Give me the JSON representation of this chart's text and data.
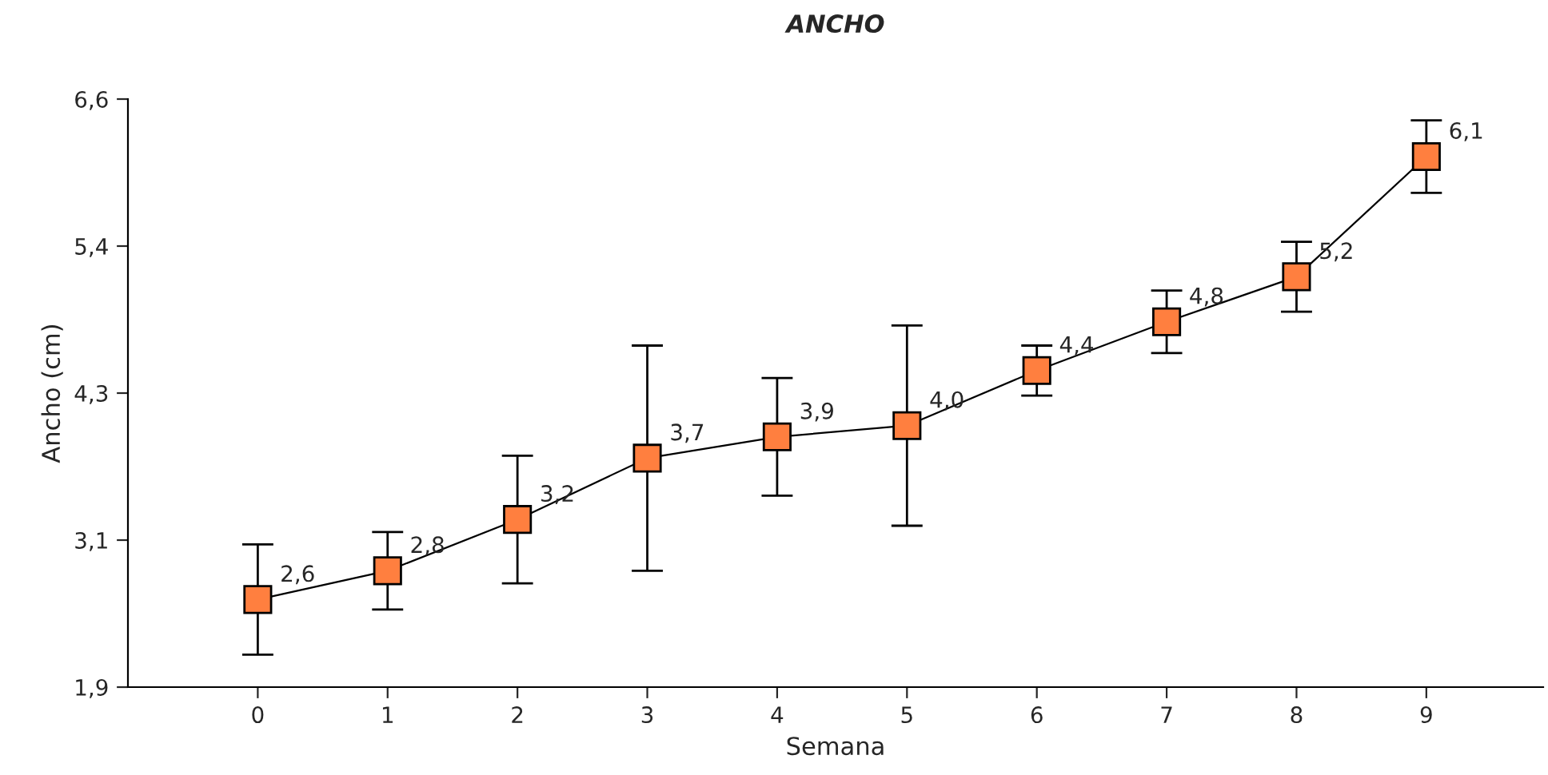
{
  "chart_data": {
    "type": "line",
    "title": "ANCHO",
    "xlabel": "Semana",
    "ylabel": "Ancho (cm)",
    "x": [
      0,
      1,
      2,
      3,
      4,
      5,
      6,
      7,
      8,
      9
    ],
    "series": [
      {
        "color": "#ff7f3f",
        "values": [
          2.6,
          2.83,
          3.24,
          3.73,
          3.9,
          3.99,
          4.43,
          4.82,
          5.18,
          6.14
        ],
        "errors": [
          0.44,
          0.31,
          0.51,
          0.9,
          0.47,
          0.8,
          0.2,
          0.25,
          0.28,
          0.29
        ],
        "value_labels": [
          "2,6",
          "2,8",
          "3,2",
          "3,7",
          "3,9",
          "4,0",
          "4,4",
          "4,8",
          "5,2",
          "6,1"
        ]
      }
    ],
    "xlim": [
      -1,
      9.9
    ],
    "xticks": [
      0,
      1,
      2,
      3,
      4,
      5,
      6,
      7,
      8,
      9
    ],
    "ylim": [
      1.9,
      6.6
    ],
    "yticks": [
      {
        "value": 1.9,
        "label": "1,9"
      },
      {
        "value": 3.075,
        "label": "3,1"
      },
      {
        "value": 4.25,
        "label": "4,3"
      },
      {
        "value": 5.425,
        "label": "5,4"
      },
      {
        "value": 6.6,
        "label": "6,6"
      }
    ],
    "grid": false,
    "marker": "square",
    "line_style": "solid"
  }
}
